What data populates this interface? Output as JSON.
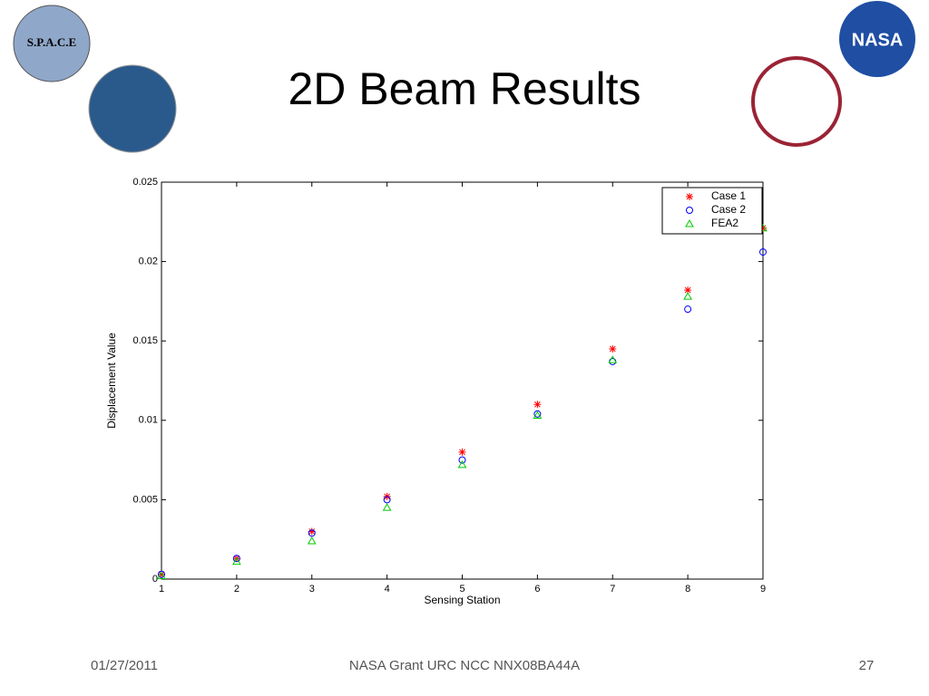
{
  "slide": {
    "title": "2D Beam Results",
    "date": "01/27/2011",
    "footer": "NASA Grant URC NCC NNX08BA44A",
    "page": "27",
    "logos": [
      "S.P.A.C.E",
      "NASA"
    ]
  },
  "chart_data": {
    "type": "scatter",
    "x_label": "Sensing Station",
    "y_label": "Displacement Value",
    "x": [
      1,
      2,
      3,
      4,
      5,
      6,
      7,
      8,
      9
    ],
    "series": [
      {
        "name": "Case 1",
        "color": "#ff0000",
        "marker": "*",
        "values": [
          0.0003,
          0.0013,
          0.003,
          0.0052,
          0.008,
          0.011,
          0.0145,
          0.0182,
          0.0221
        ]
      },
      {
        "name": "Case 2",
        "color": "#0000ff",
        "marker": "o",
        "values": [
          0.0003,
          0.0013,
          0.0029,
          0.005,
          0.0075,
          0.0104,
          0.0137,
          0.017,
          0.0206
        ]
      },
      {
        "name": "FEA2",
        "color": "#00cc00",
        "marker": "^",
        "values": [
          0.0002,
          0.0011,
          0.0024,
          0.0045,
          0.0072,
          0.0103,
          0.0138,
          0.0178,
          0.0221
        ]
      }
    ],
    "xlim": [
      1,
      9
    ],
    "xticks": [
      1,
      2,
      3,
      4,
      5,
      6,
      7,
      8,
      9
    ],
    "ylim": [
      0,
      0.025
    ],
    "yticks": [
      0,
      0.005,
      0.01,
      0.015,
      0.02,
      0.025
    ],
    "grid": false,
    "legend": "upper right"
  }
}
